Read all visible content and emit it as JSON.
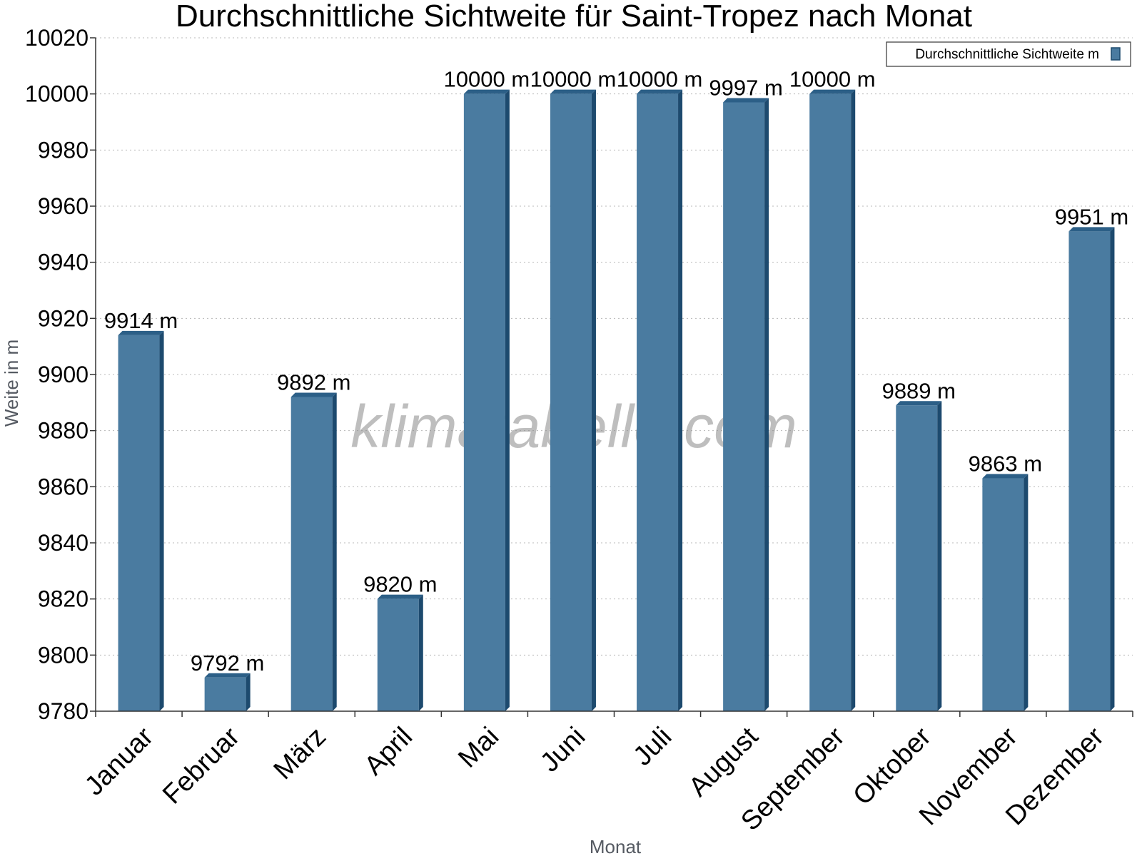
{
  "chart_data": {
    "type": "bar",
    "title": "Durchschnittliche Sichtweite für Saint-Tropez nach Monat",
    "xlabel": "Monat",
    "ylabel": "Weite in m",
    "ylim": [
      9780,
      10020
    ],
    "ytick_step": 20,
    "grid": true,
    "legend_position": "top-right",
    "value_suffix": " m",
    "categories": [
      "Januar",
      "Februar",
      "März",
      "April",
      "Mai",
      "Juni",
      "Juli",
      "August",
      "September",
      "Oktober",
      "November",
      "Dezember"
    ],
    "series": [
      {
        "name": "Durchschnittliche Sichtweite m",
        "color": "#4a7ba0",
        "values": [
          9914,
          9792,
          9892,
          9820,
          10000,
          10000,
          10000,
          9997,
          10000,
          9889,
          9863,
          9951
        ]
      }
    ]
  },
  "watermark": "klimatabelle.com"
}
